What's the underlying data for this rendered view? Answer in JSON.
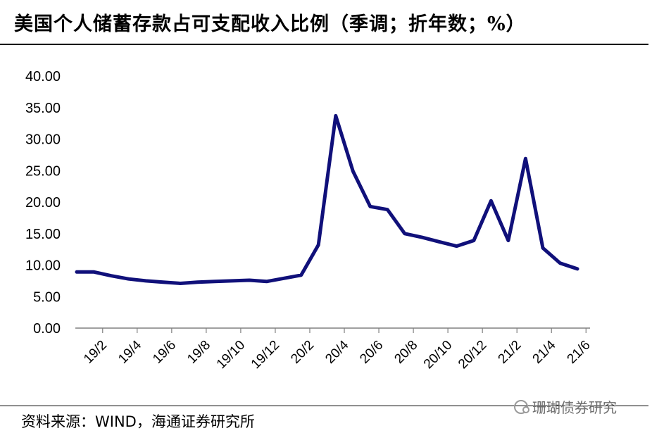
{
  "title": "美国个人储蓄存款占可支配收入比例（季调；折年数；%）",
  "source": "资料来源：WIND，海通证券研究所",
  "watermark": "珊瑚债券研究",
  "chart_data": {
    "type": "line",
    "title": "美国个人储蓄存款占可支配收入比例（季调；折年数；%）",
    "xlabel": "",
    "ylabel": "",
    "ylim": [
      0,
      40
    ],
    "yticks": [
      "0.00",
      "5.00",
      "10.00",
      "15.00",
      "20.00",
      "25.00",
      "30.00",
      "35.00",
      "40.00"
    ],
    "x": [
      "19/1",
      "19/2",
      "19/3",
      "19/4",
      "19/5",
      "19/6",
      "19/7",
      "19/8",
      "19/9",
      "19/10",
      "19/11",
      "19/12",
      "20/1",
      "20/2",
      "20/3",
      "20/4",
      "20/5",
      "20/6",
      "20/7",
      "20/8",
      "20/9",
      "20/10",
      "20/11",
      "20/12",
      "21/1",
      "21/2",
      "21/3",
      "21/4",
      "21/5",
      "21/6"
    ],
    "xtick_labels": [
      "19/2",
      "19/4",
      "19/6",
      "19/8",
      "19/10",
      "19/12",
      "20/2",
      "20/4",
      "20/6",
      "20/8",
      "20/10",
      "20/12",
      "21/2",
      "21/4",
      "21/6"
    ],
    "series": [
      {
        "color": "#10107a",
        "values": [
          8.9,
          8.9,
          8.3,
          7.8,
          7.5,
          7.3,
          7.1,
          7.3,
          7.4,
          7.5,
          7.6,
          7.4,
          7.9,
          8.4,
          13.2,
          33.7,
          24.9,
          19.3,
          18.8,
          15.0,
          14.4,
          13.7,
          13.0,
          13.9,
          20.2,
          13.9,
          26.9,
          12.7,
          10.3,
          9.4
        ]
      }
    ],
    "grid": false,
    "legend": "none"
  }
}
